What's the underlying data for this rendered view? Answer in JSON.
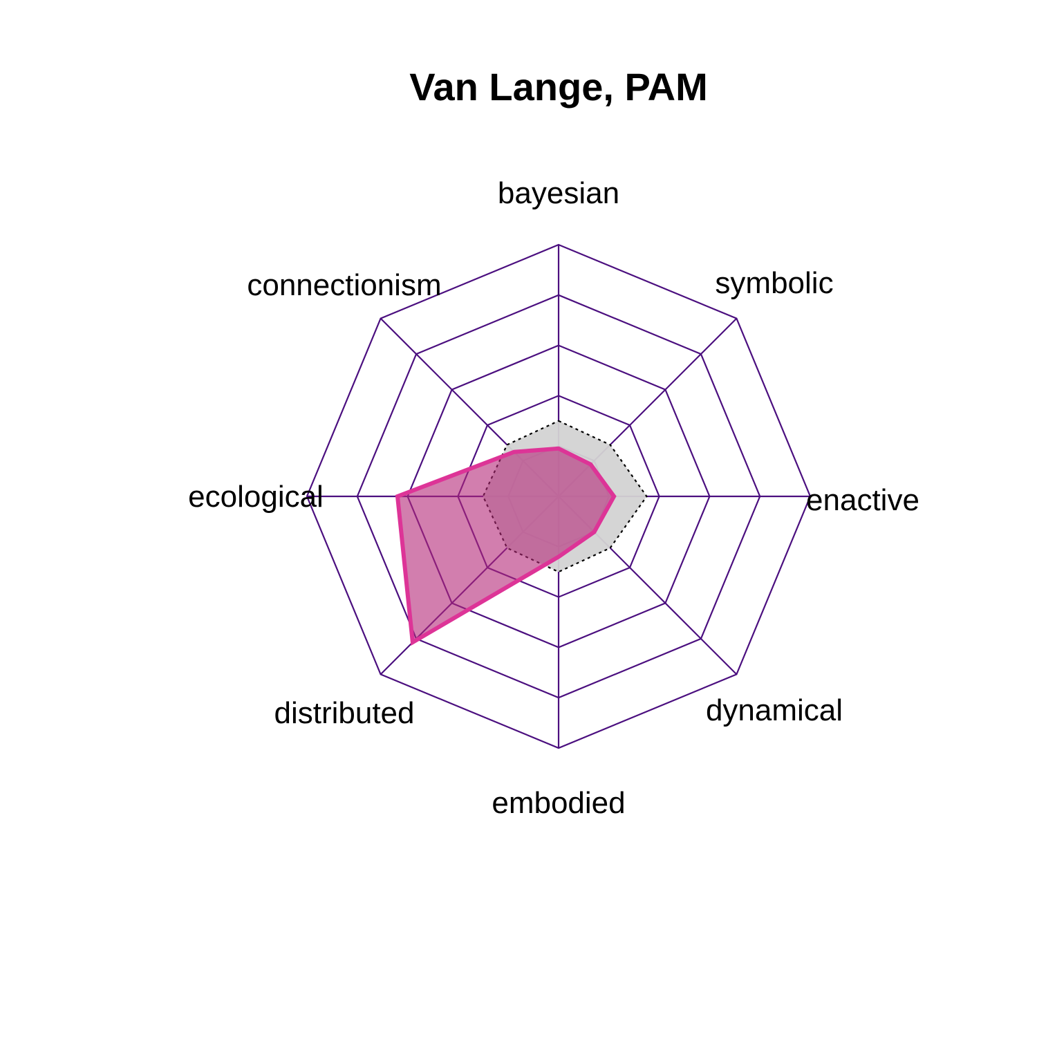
{
  "chart_data": {
    "type": "radar",
    "title": "Van Lange, PAM",
    "axes": [
      "bayesian",
      "symbolic",
      "enactive",
      "dynamical",
      "embodied",
      "distributed",
      "ecological",
      "connectionism"
    ],
    "rlim": [
      0,
      5
    ],
    "grid_levels": [
      1,
      2,
      3,
      4,
      5
    ],
    "baseline": {
      "values": [
        1.5,
        1.45,
        1.75,
        1.45,
        1.5,
        1.45,
        1.5,
        1.45
      ],
      "fill": "#d3d3d3",
      "line_style": "dotted",
      "line_color": "#000000"
    },
    "series": [
      {
        "values": [
          0.95,
          0.9,
          1.1,
          1.0,
          1.2,
          4.1,
          3.2,
          1.25
        ],
        "fill": "rgba(180,40,120,0.6)",
        "line_color": "#dd3497"
      }
    ],
    "grid_color": "#4b0f7f"
  }
}
